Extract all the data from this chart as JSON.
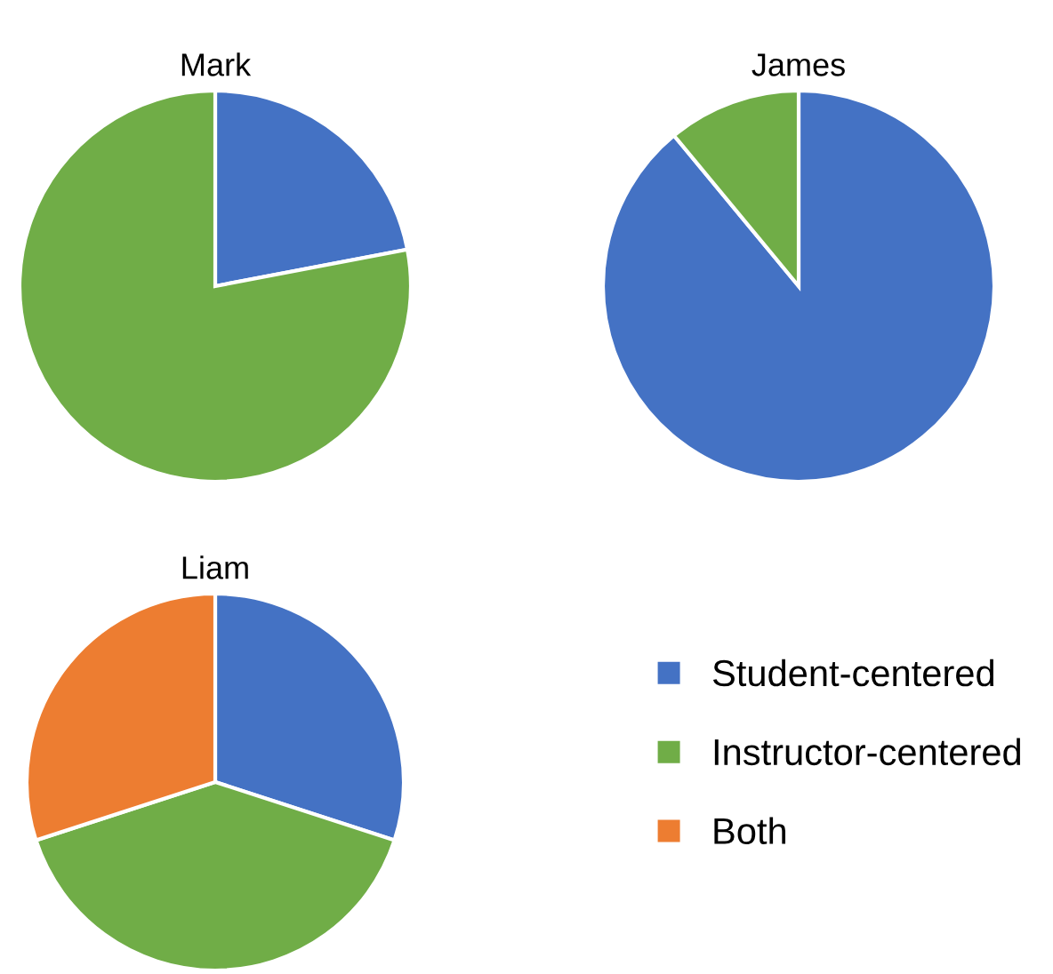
{
  "chart_data": [
    {
      "type": "pie",
      "title": "Mark",
      "categories": [
        null,
        null
      ],
      "values": [
        22,
        78
      ],
      "colors": [
        "#4472c4",
        "#70ad47"
      ]
    },
    {
      "type": "pie",
      "title": "James",
      "categories": [
        null,
        null
      ],
      "values": [
        89,
        11
      ],
      "colors": [
        "#4472c4",
        "#70ad47"
      ]
    },
    {
      "type": "pie",
      "title": "Liam",
      "categories": [
        "Student-centered",
        "Instructor-centered",
        "Both"
      ],
      "values": [
        30,
        40,
        30
      ],
      "colors": [
        "#4472c4",
        "#70ad47",
        "#ed7d31"
      ],
      "legend": "right"
    }
  ]
}
